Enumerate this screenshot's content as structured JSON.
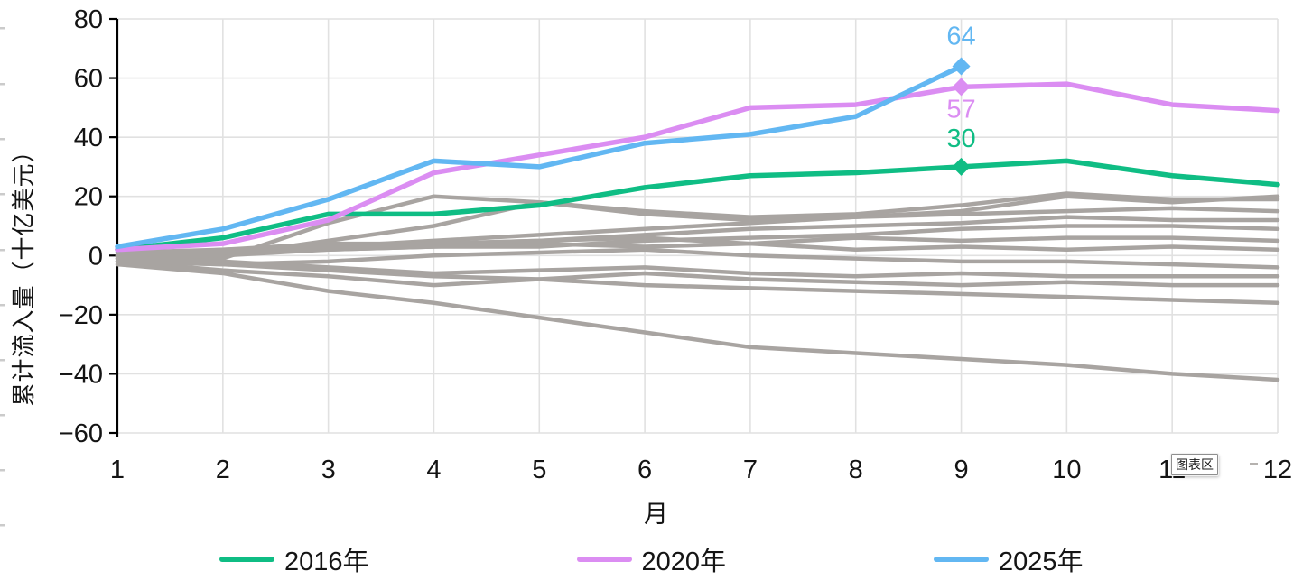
{
  "y_axis": {
    "title": "累计流入量（十亿美元）"
  },
  "x_axis": {
    "title": "月"
  },
  "tooltip": {
    "label": "图表区"
  },
  "legend": {
    "position": "bottom",
    "items": [
      {
        "label": "2016年"
      },
      {
        "label": "2020年"
      },
      {
        "label": "2025年"
      }
    ]
  },
  "chart_data": {
    "type": "line",
    "title": "",
    "xlabel": "月",
    "ylabel": "累计流入量（十亿美元）",
    "x": [
      1,
      2,
      3,
      4,
      5,
      6,
      7,
      8,
      9,
      10,
      11,
      12
    ],
    "x_tick_labels": [
      "1",
      "2",
      "3",
      "4",
      "5",
      "6",
      "7",
      "8",
      "9",
      "10",
      "11",
      "12"
    ],
    "ylim": [
      -60,
      80
    ],
    "y_ticks": [
      80,
      60,
      40,
      20,
      0,
      -20,
      -40,
      -60
    ],
    "y_tick_labels": [
      "80",
      "60",
      "40",
      "20",
      "0",
      "−20",
      "−40",
      "−60"
    ],
    "grid": true,
    "legend_position": "bottom",
    "colors": {
      "grid": "#e1e1e1",
      "axis": "#000000",
      "background_line": "#a8a4a1"
    },
    "series": [
      {
        "name": "2016年",
        "color": "#0fbd84",
        "values": [
          2,
          6,
          14,
          14,
          17,
          23,
          27,
          28,
          30,
          32,
          27,
          24
        ],
        "marker_month": 9,
        "marker_value": 30,
        "data_label": "30",
        "label_offset": -22
      },
      {
        "name": "2020年",
        "color": "#db8df2",
        "values": [
          2,
          4,
          12,
          28,
          34,
          40,
          50,
          51,
          57,
          58,
          51,
          49
        ],
        "marker_month": 9,
        "marker_value": 57,
        "data_label": "57",
        "label_offset": 34
      },
      {
        "name": "2025年",
        "color": "#62b7f2",
        "values": [
          3,
          9,
          19,
          32,
          30,
          38,
          41,
          47,
          64
        ],
        "marker_month": 9,
        "marker_value": 64,
        "data_label": "64",
        "label_offset": -24
      }
    ],
    "background_series": [
      {
        "values": [
          0,
          -1,
          11,
          20,
          18,
          14,
          12,
          13,
          15,
          20,
          18,
          20
        ]
      },
      {
        "values": [
          -1,
          0,
          5,
          10,
          18,
          15,
          13,
          14,
          17,
          21,
          19,
          19
        ]
      },
      {
        "values": [
          1,
          2,
          3,
          5,
          7,
          9,
          11,
          13,
          14,
          15,
          16,
          15
        ]
      },
      {
        "values": [
          0,
          2,
          4,
          4,
          5,
          7,
          9,
          10,
          11,
          13,
          12,
          12
        ]
      },
      {
        "values": [
          -1,
          0,
          2,
          3,
          3,
          5,
          6,
          7,
          9,
          10,
          10,
          9
        ]
      },
      {
        "values": [
          0,
          1,
          2,
          3,
          4,
          3,
          4,
          6,
          5,
          6,
          6,
          5
        ]
      },
      {
        "values": [
          1,
          1,
          3,
          4,
          5,
          6,
          4,
          2,
          3,
          2,
          3,
          2
        ]
      },
      {
        "values": [
          -2,
          -3,
          -2,
          0,
          1,
          2,
          0,
          -1,
          -2,
          -2,
          -3,
          -4
        ]
      },
      {
        "values": [
          -1,
          -2,
          -4,
          -6,
          -5,
          -4,
          -6,
          -7,
          -6,
          -7,
          -7,
          -7
        ]
      },
      {
        "values": [
          -2,
          -5,
          -7,
          -10,
          -8,
          -6,
          -8,
          -9,
          -10,
          -9,
          -10,
          -10
        ]
      },
      {
        "values": [
          -2,
          -3,
          -5,
          -7,
          -8,
          -10,
          -11,
          -12,
          -13,
          -14,
          -15,
          -16
        ]
      },
      {
        "values": [
          -3,
          -6,
          -12,
          -16,
          -21,
          -26,
          -31,
          -33,
          -35,
          -37,
          -40,
          -42
        ]
      }
    ]
  }
}
